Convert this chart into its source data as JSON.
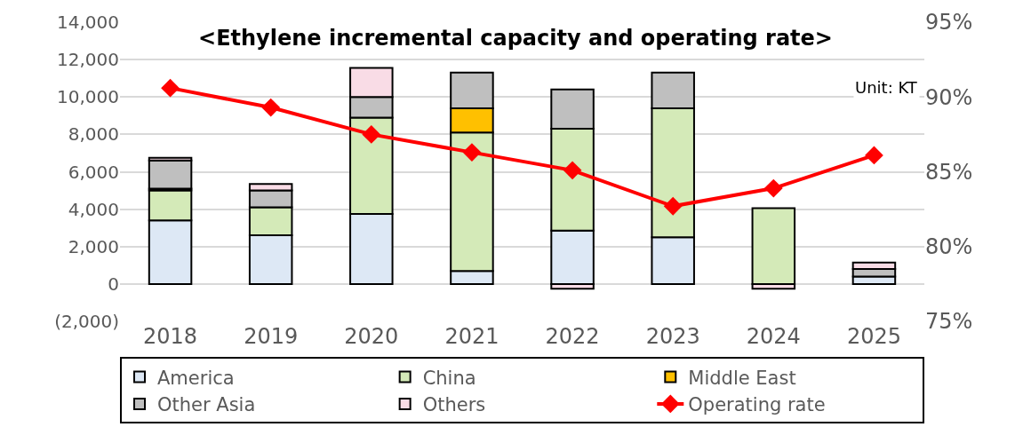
{
  "chart_data": {
    "type": "bar",
    "stacked": true,
    "title": "<Ethylene incremental capacity and operating rate>",
    "categories": [
      "2018",
      "2019",
      "2020",
      "2021",
      "2022",
      "2023",
      "2024",
      "2025"
    ],
    "series": [
      {
        "name": "America",
        "color": "#dde8f5",
        "values": [
          3400,
          2600,
          3750,
          700,
          2850,
          2500,
          null,
          400
        ]
      },
      {
        "name": "China",
        "color": "#d4eab8",
        "values": [
          1600,
          1500,
          5150,
          7400,
          5450,
          6900,
          4050,
          null
        ]
      },
      {
        "name": "Middle East",
        "color": "#ffc000",
        "values": [
          100,
          null,
          null,
          1300,
          null,
          null,
          null,
          null
        ]
      },
      {
        "name": "Other Asia",
        "color": "#bfbfbf",
        "values": [
          1500,
          900,
          1100,
          1900,
          2100,
          1900,
          null,
          400
        ]
      },
      {
        "name": "Others",
        "color": "#f9dce6",
        "values": [
          150,
          350,
          1550,
          null,
          -250,
          null,
          -250,
          350
        ]
      },
      {
        "name": "Operating rate",
        "type": "line",
        "axis": "y2",
        "color": "#ff0000",
        "marker": "diamond",
        "values": [
          90.6,
          89.3,
          87.5,
          86.3,
          85.1,
          82.7,
          83.9,
          86.1
        ]
      }
    ],
    "ylim": [
      -2000,
      14000
    ],
    "yticks": [
      {
        "value": -2000,
        "label": "(2,000)"
      },
      {
        "value": 0,
        "label": "0"
      },
      {
        "value": 2000,
        "label": "2,000"
      },
      {
        "value": 4000,
        "label": "4,000"
      },
      {
        "value": 6000,
        "label": "6,000"
      },
      {
        "value": 8000,
        "label": "8,000"
      },
      {
        "value": 10000,
        "label": "10,000"
      },
      {
        "value": 12000,
        "label": "12,000"
      },
      {
        "value": 14000,
        "label": "14,000"
      }
    ],
    "y2lim": [
      75,
      95
    ],
    "y2ticks": [
      {
        "value": 75,
        "label": "75%"
      },
      {
        "value": 80,
        "label": "80%"
      },
      {
        "value": 85,
        "label": "85%"
      },
      {
        "value": 90,
        "label": "90%"
      },
      {
        "value": 95,
        "label": "95%"
      }
    ],
    "grid": "y",
    "legend": "bottom",
    "annotations": [
      "Unit: KT"
    ]
  }
}
